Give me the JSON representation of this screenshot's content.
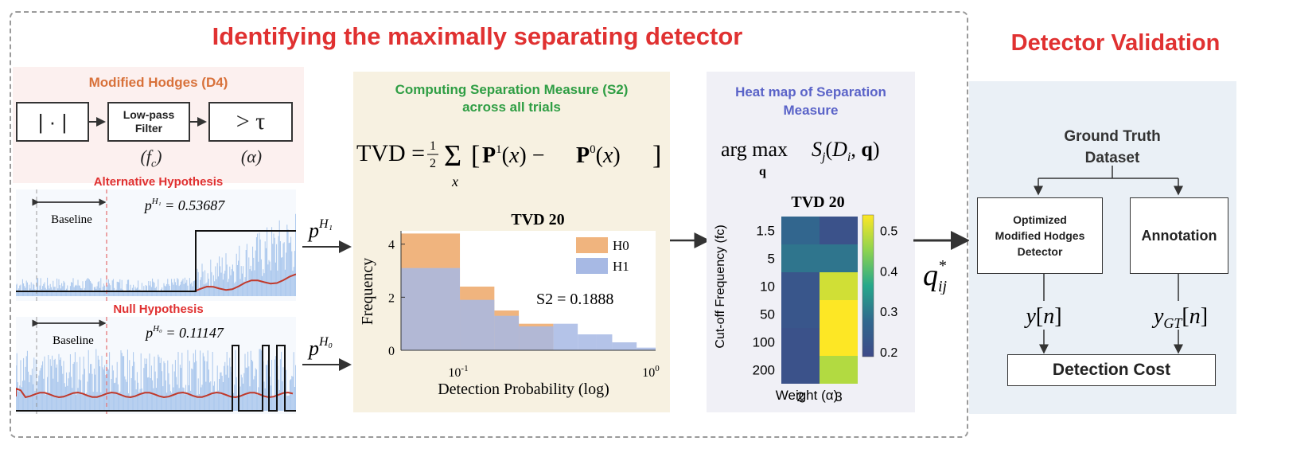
{
  "main_title": "Identifying the maximally separating detector",
  "validation_title": "Detector Validation",
  "hodges": {
    "title": "Modified Hodges (D4)",
    "abs_label": "| · |",
    "lowpass_label": "Low-pass Filter",
    "threshold_label": "> τ",
    "fc_param": "(f_c)",
    "alpha_param": "(α)"
  },
  "alt": {
    "title": "Alternative Hypothesis",
    "baseline_label": "Baseline",
    "p_label": "p^{H_1} = 0.53687"
  },
  "null": {
    "title": "Null Hypothesis",
    "baseline_label": "Baseline",
    "p_label": "p^{H_0} = 0.11147"
  },
  "arrow_labels": {
    "pH1": "H1",
    "pH0": "H0",
    "p": "p",
    "q_star": "q*ij"
  },
  "separation": {
    "title_line1": "Computing Separation Measure (S2)",
    "title_line2": "across all trials",
    "formula": "TVD = ½ Σx [P¹(x) − P⁰(x)]"
  },
  "heatmap_panel": {
    "title_line1": "Heat map of Separation",
    "title_line2": "Measure",
    "formula": "arg max Sj(Di, q)",
    "formula_sub": "q"
  },
  "chart_data": [
    {
      "type": "histogram",
      "title": "TVD 20",
      "xlabel": "Detection Probability (log)",
      "ylabel": "Frequency",
      "xscale": "log",
      "xlim": [
        0.05,
        1
      ],
      "ylim": [
        0,
        4.5
      ],
      "xticks": [
        "10^-1",
        "10^0"
      ],
      "yticks": [
        0,
        2,
        4
      ],
      "bin_edges": [
        0.05,
        0.1,
        0.15,
        0.2,
        0.3,
        0.4,
        0.5,
        0.6,
        0.8,
        1.0
      ],
      "series": [
        {
          "name": "H0",
          "color": "#f0b47e",
          "values": [
            4.4,
            2.4,
            1.5,
            1.0,
            0,
            0,
            0,
            0,
            0
          ]
        },
        {
          "name": "H1",
          "color": "#a7b9e4",
          "values": [
            3.1,
            1.9,
            1.3,
            0.9,
            1.0,
            0.6,
            0.6,
            0.3,
            0.1
          ]
        }
      ],
      "annotation": "S2 = 0.1888",
      "legend_position": "top-right"
    },
    {
      "type": "heatmap",
      "title": "TVD 20",
      "xlabel": "Weight (α)",
      "ylabel": "Cut-off Frequency (fc)",
      "x_categories": [
        "2",
        "3"
      ],
      "y_categories": [
        "1.5",
        "5",
        "10",
        "50",
        "100",
        "200"
      ],
      "values": [
        [
          0.27,
          0.22
        ],
        [
          0.29,
          0.29
        ],
        [
          0.23,
          0.47
        ],
        [
          0.23,
          0.5
        ],
        [
          0.22,
          0.5
        ],
        [
          0.22,
          0.45
        ]
      ],
      "colorbar": {
        "min": 0.2,
        "max": 0.5,
        "ticks": [
          "0.2",
          "0.3",
          "0.4",
          "0.5"
        ]
      }
    }
  ],
  "validation": {
    "gt_line1": "Ground Truth",
    "gt_line2": "Dataset",
    "detector_line1": "Optimized",
    "detector_line2": "Modified Hodges",
    "detector_line3": "Detector",
    "annotation": "Annotation",
    "y_out": "y[n]",
    "y_gt": "yGT[n]",
    "cost": "Detection Cost"
  },
  "colors": {
    "red_title": "#e03131",
    "orange_title": "#d8713a",
    "green_title": "#2f9e44",
    "blue_title": "#5a63c8"
  }
}
